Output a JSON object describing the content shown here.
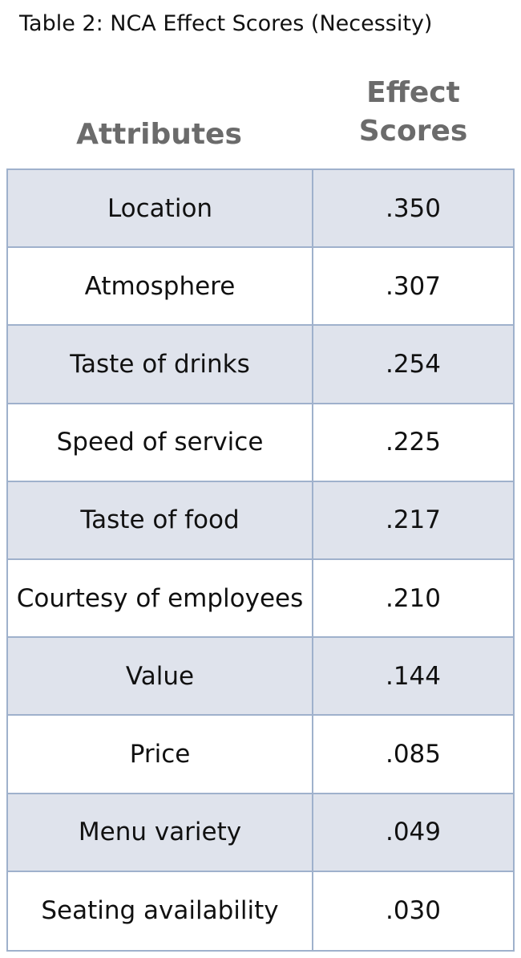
{
  "caption": "Table 2: NCA Effect Scores (Necessity)",
  "header": {
    "attributes": "Attributes",
    "effect_scores": "Effect\nScores"
  },
  "chart_data": {
    "type": "table",
    "title": "Table 2: NCA Effect Scores (Necessity)",
    "columns": [
      "Attributes",
      "Effect Scores"
    ],
    "rows": [
      {
        "attribute": "Location",
        "score": ".350"
      },
      {
        "attribute": "Atmosphere",
        "score": ".307"
      },
      {
        "attribute": "Taste of drinks",
        "score": ".254"
      },
      {
        "attribute": "Speed of service",
        "score": ".225"
      },
      {
        "attribute": "Taste of food",
        "score": ".217"
      },
      {
        "attribute": "Courtesy of employees",
        "score": ".210"
      },
      {
        "attribute": "Value",
        "score": ".144"
      },
      {
        "attribute": "Price",
        "score": ".085"
      },
      {
        "attribute": "Menu variety",
        "score": ".049"
      },
      {
        "attribute": "Seating availability",
        "score": ".030"
      }
    ]
  },
  "colors": {
    "border": "#9fb1cc",
    "shaded_row": "#dfe3ec",
    "header_text": "#6b6b6b"
  }
}
